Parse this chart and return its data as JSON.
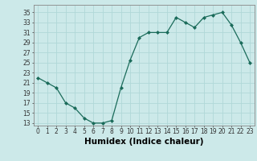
{
  "xlabel": "Humidex (Indice chaleur)",
  "x": [
    0,
    1,
    2,
    3,
    4,
    5,
    6,
    7,
    8,
    9,
    10,
    11,
    12,
    13,
    14,
    15,
    16,
    17,
    18,
    19,
    20,
    21,
    22,
    23
  ],
  "y": [
    22,
    21,
    20,
    17,
    16,
    14,
    13,
    13,
    13.5,
    20,
    25.5,
    30,
    31,
    31,
    31,
    34,
    33,
    32,
    34,
    34.5,
    35,
    32.5,
    29,
    25
  ],
  "xlim": [
    -0.5,
    23.5
  ],
  "ylim": [
    12.5,
    36.5
  ],
  "yticks": [
    13,
    15,
    17,
    19,
    21,
    23,
    25,
    27,
    29,
    31,
    33,
    35
  ],
  "xticks": [
    0,
    1,
    2,
    3,
    4,
    5,
    6,
    7,
    8,
    9,
    10,
    11,
    12,
    13,
    14,
    15,
    16,
    17,
    18,
    19,
    20,
    21,
    22,
    23
  ],
  "line_color": "#1a6b5a",
  "marker": "D",
  "marker_size": 2.0,
  "bg_color": "#cce9e9",
  "grid_color": "#b0d8d8",
  "tick_fontsize": 5.5,
  "label_fontsize": 7.5
}
